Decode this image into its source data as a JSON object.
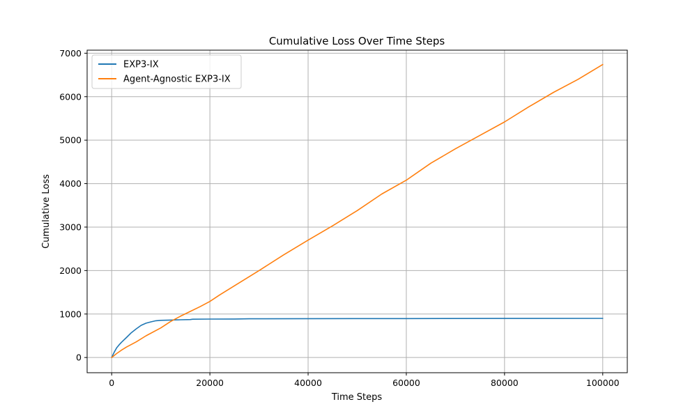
{
  "chart_data": {
    "type": "line",
    "title": "Cumulative Loss Over Time Steps",
    "xlabel": "Time Steps",
    "ylabel": "Cumulative Loss",
    "xlim": [
      -5000,
      105000
    ],
    "ylim": [
      -350,
      7070
    ],
    "xticks": [
      0,
      20000,
      40000,
      60000,
      80000,
      100000
    ],
    "yticks": [
      0,
      1000,
      2000,
      3000,
      4000,
      5000,
      6000,
      7000
    ],
    "grid": true,
    "legend_position": "top-left",
    "series": [
      {
        "name": "EXP3-IX",
        "color": "#1f77b4",
        "x": [
          0,
          500,
          1000,
          1500,
          2000,
          3000,
          4000,
          5000,
          6000,
          7000,
          8000,
          9000,
          10000,
          12000,
          14000,
          16000,
          16500,
          20000,
          25000,
          28000,
          40000,
          60000,
          80000,
          100000
        ],
        "y": [
          0,
          120,
          220,
          290,
          350,
          460,
          570,
          660,
          740,
          790,
          820,
          845,
          855,
          862,
          868,
          872,
          880,
          884,
          886,
          890,
          893,
          896,
          898,
          900
        ]
      },
      {
        "name": "Agent-Agnostic EXP3-IX",
        "color": "#ff7f0e",
        "x": [
          0,
          1000,
          2000,
          3000,
          5000,
          7000,
          10000,
          12000,
          14000,
          16000,
          18000,
          20000,
          22000,
          25000,
          30000,
          35000,
          40000,
          45000,
          50000,
          55000,
          60000,
          65000,
          70000,
          75000,
          80000,
          85000,
          90000,
          95000,
          100000
        ],
        "y": [
          0,
          90,
          170,
          240,
          360,
          500,
          680,
          830,
          950,
          1060,
          1170,
          1290,
          1440,
          1650,
          2000,
          2360,
          2700,
          3030,
          3380,
          3760,
          4080,
          4470,
          4800,
          5110,
          5420,
          5770,
          6100,
          6400,
          6740
        ]
      }
    ]
  }
}
